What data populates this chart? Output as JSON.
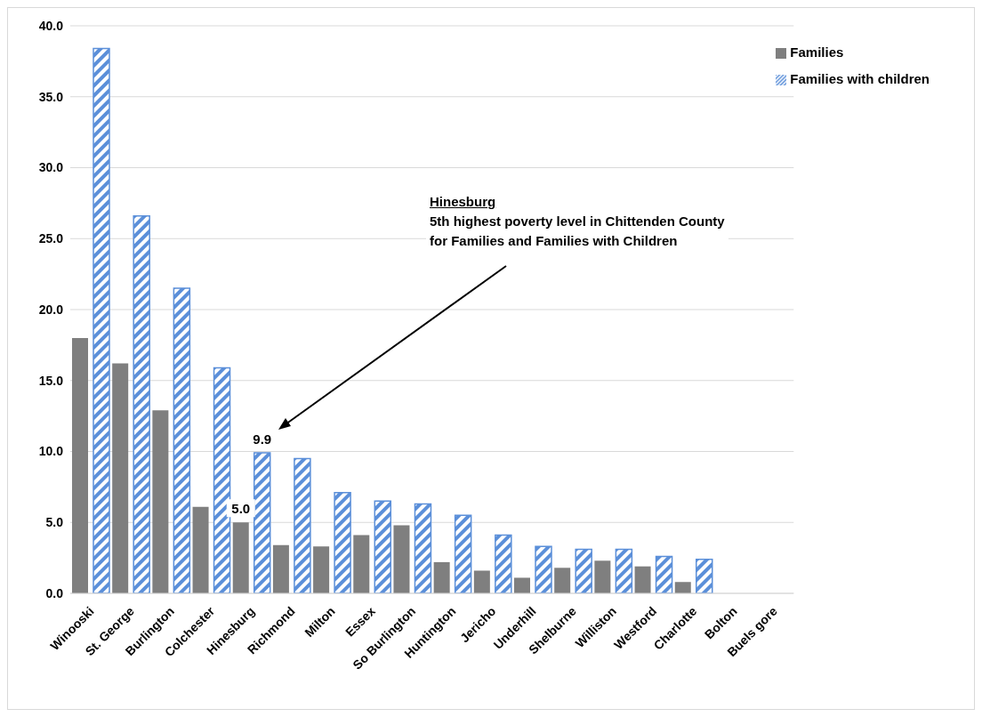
{
  "chart_data": {
    "type": "bar",
    "categories": [
      "Winooski",
      "St. George",
      "Burlington",
      "Colchester",
      "Hinesburg",
      "Richmond",
      "Milton",
      "Essex",
      "So Burlington",
      "Huntington",
      "Jericho",
      "Underhill",
      "Shelburne",
      "Williston",
      "Westford",
      "Charlotte",
      "Bolton",
      "Buels gore"
    ],
    "series": [
      {
        "name": "Families",
        "color": "#7f7f7f",
        "values": [
          18.0,
          16.2,
          12.9,
          6.1,
          5.0,
          3.4,
          3.3,
          4.1,
          4.8,
          2.2,
          1.6,
          1.1,
          1.8,
          2.3,
          1.9,
          0.8,
          null,
          null
        ],
        "value_labels": [
          null,
          null,
          null,
          null,
          "5.0",
          null,
          null,
          null,
          null,
          null,
          null,
          null,
          null,
          null,
          null,
          null,
          null,
          null
        ]
      },
      {
        "name": "Families with children",
        "color": "#5b8fd9",
        "values": [
          38.4,
          26.6,
          21.5,
          15.9,
          9.9,
          9.5,
          7.1,
          6.5,
          6.3,
          5.5,
          4.1,
          3.3,
          3.1,
          3.1,
          2.6,
          2.4,
          null,
          null
        ],
        "value_labels": [
          null,
          null,
          null,
          null,
          "9.9",
          null,
          null,
          null,
          null,
          null,
          null,
          null,
          null,
          null,
          null,
          null,
          null,
          null
        ]
      }
    ],
    "ylim": [
      0,
      40
    ],
    "yticks": [
      {
        "value": 0,
        "label": "0.0"
      },
      {
        "value": 5,
        "label": "5.0"
      },
      {
        "value": 10,
        "label": "10.0"
      },
      {
        "value": 15,
        "label": "15.0"
      },
      {
        "value": 20,
        "label": "20.0"
      },
      {
        "value": 25,
        "label": "25.0"
      },
      {
        "value": 30,
        "label": "30.0"
      },
      {
        "value": 35,
        "label": "35.0"
      },
      {
        "value": 40,
        "label": "40.0"
      }
    ],
    "grid": "y",
    "legend": "top right",
    "annotations": [
      "Hinesburg",
      "5th highest poverty level in Chittenden County",
      "for Families and Families with Children"
    ]
  }
}
